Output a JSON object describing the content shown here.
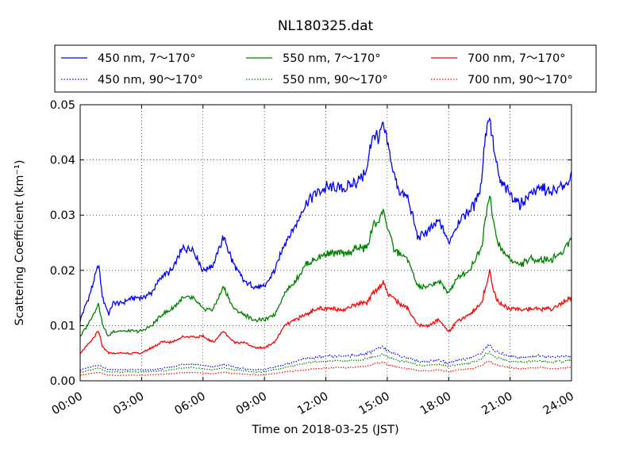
{
  "chart_data": {
    "type": "line",
    "title": "NL180325.dat",
    "xlabel": "Time on 2018-03-25 (JST)",
    "ylabel": "Scattering Coefficient (km⁻¹)",
    "xlim": [
      0,
      24
    ],
    "ylim": [
      0,
      0.05
    ],
    "grid": true,
    "legend_position": "top, above plot",
    "x_ticks": [
      "00:00",
      "03:00",
      "06:00",
      "09:00",
      "12:00",
      "15:00",
      "18:00",
      "21:00",
      "24:00"
    ],
    "y_ticks": [
      "0.00",
      "0.01",
      "0.02",
      "0.03",
      "0.04",
      "0.05"
    ],
    "x": [
      0,
      0.5,
      0.9,
      1.1,
      1.4,
      1.6,
      2,
      2.5,
      3,
      3.5,
      4,
      4.5,
      5,
      5.5,
      6,
      6.5,
      7,
      7.5,
      8,
      8.5,
      9,
      9.5,
      10,
      10.5,
      11,
      11.5,
      12,
      12.5,
      13,
      13.5,
      14,
      14.3,
      14.6,
      14.8,
      15,
      15.3,
      15.6,
      16,
      16.5,
      17,
      17.5,
      18,
      18.5,
      19,
      19.3,
      19.6,
      19.8,
      20,
      20.2,
      20.5,
      21,
      21.5,
      22,
      22.5,
      23,
      23.5,
      24
    ],
    "series": [
      {
        "name": "450 nm, 7～170°",
        "color": "#0000ff",
        "style": "solid",
        "values": [
          0.011,
          0.016,
          0.021,
          0.015,
          0.012,
          0.014,
          0.014,
          0.015,
          0.015,
          0.016,
          0.019,
          0.02,
          0.024,
          0.024,
          0.02,
          0.021,
          0.026,
          0.021,
          0.018,
          0.017,
          0.017,
          0.02,
          0.025,
          0.028,
          0.032,
          0.034,
          0.035,
          0.035,
          0.035,
          0.036,
          0.038,
          0.045,
          0.044,
          0.046,
          0.043,
          0.038,
          0.034,
          0.033,
          0.026,
          0.027,
          0.029,
          0.025,
          0.029,
          0.031,
          0.032,
          0.036,
          0.045,
          0.048,
          0.042,
          0.036,
          0.034,
          0.032,
          0.034,
          0.035,
          0.034,
          0.035,
          0.037
        ]
      },
      {
        "name": "450 nm, 90～170°",
        "color": "#0000ff",
        "style": "dotted",
        "values": [
          0.002,
          0.0025,
          0.0028,
          0.0025,
          0.002,
          0.002,
          0.002,
          0.002,
          0.002,
          0.002,
          0.0022,
          0.0025,
          0.003,
          0.003,
          0.0028,
          0.0025,
          0.003,
          0.0025,
          0.0022,
          0.002,
          0.002,
          0.0025,
          0.003,
          0.0035,
          0.004,
          0.0042,
          0.0044,
          0.0045,
          0.0045,
          0.0046,
          0.005,
          0.0055,
          0.0058,
          0.006,
          0.0055,
          0.005,
          0.0045,
          0.0042,
          0.0035,
          0.0035,
          0.0038,
          0.0032,
          0.0038,
          0.004,
          0.0045,
          0.005,
          0.006,
          0.0065,
          0.0055,
          0.005,
          0.0045,
          0.0042,
          0.0044,
          0.0045,
          0.0043,
          0.0044,
          0.0045
        ]
      },
      {
        "name": "550 nm, 7～170°",
        "color": "#008000",
        "style": "solid",
        "values": [
          0.008,
          0.011,
          0.014,
          0.01,
          0.008,
          0.009,
          0.009,
          0.009,
          0.009,
          0.01,
          0.012,
          0.013,
          0.015,
          0.015,
          0.013,
          0.013,
          0.017,
          0.013,
          0.012,
          0.011,
          0.011,
          0.012,
          0.016,
          0.018,
          0.021,
          0.022,
          0.023,
          0.023,
          0.023,
          0.024,
          0.024,
          0.028,
          0.029,
          0.031,
          0.028,
          0.024,
          0.023,
          0.022,
          0.017,
          0.017,
          0.018,
          0.016,
          0.019,
          0.02,
          0.022,
          0.024,
          0.03,
          0.034,
          0.028,
          0.024,
          0.022,
          0.021,
          0.022,
          0.022,
          0.022,
          0.023,
          0.026
        ]
      },
      {
        "name": "550 nm, 90～170°",
        "color": "#008000",
        "style": "dotted",
        "values": [
          0.0015,
          0.002,
          0.0023,
          0.002,
          0.0016,
          0.0016,
          0.0016,
          0.0016,
          0.0016,
          0.0017,
          0.0018,
          0.002,
          0.0024,
          0.0024,
          0.0022,
          0.002,
          0.0024,
          0.002,
          0.0018,
          0.0016,
          0.0016,
          0.002,
          0.0024,
          0.0028,
          0.0032,
          0.0034,
          0.0035,
          0.0036,
          0.0036,
          0.0037,
          0.004,
          0.0044,
          0.0046,
          0.0048,
          0.0044,
          0.004,
          0.0036,
          0.0034,
          0.0028,
          0.0028,
          0.003,
          0.0026,
          0.003,
          0.0032,
          0.0036,
          0.004,
          0.0048,
          0.0052,
          0.0044,
          0.004,
          0.0036,
          0.0034,
          0.0035,
          0.0036,
          0.0034,
          0.0035,
          0.0036
        ]
      },
      {
        "name": "700 nm, 7～170°",
        "color": "#ff0000",
        "style": "solid",
        "values": [
          0.005,
          0.007,
          0.009,
          0.006,
          0.005,
          0.005,
          0.005,
          0.005,
          0.005,
          0.006,
          0.007,
          0.007,
          0.008,
          0.008,
          0.008,
          0.007,
          0.009,
          0.007,
          0.007,
          0.006,
          0.006,
          0.007,
          0.01,
          0.011,
          0.012,
          0.013,
          0.013,
          0.013,
          0.013,
          0.014,
          0.014,
          0.016,
          0.017,
          0.018,
          0.016,
          0.015,
          0.014,
          0.013,
          0.01,
          0.01,
          0.011,
          0.009,
          0.011,
          0.012,
          0.013,
          0.014,
          0.017,
          0.02,
          0.016,
          0.014,
          0.013,
          0.013,
          0.013,
          0.013,
          0.013,
          0.014,
          0.015
        ]
      },
      {
        "name": "700 nm, 90～170°",
        "color": "#ff0000",
        "style": "dotted",
        "values": [
          0.001,
          0.0013,
          0.0015,
          0.0013,
          0.001,
          0.001,
          0.001,
          0.001,
          0.001,
          0.0011,
          0.0012,
          0.0013,
          0.0015,
          0.0015,
          0.0014,
          0.0013,
          0.0015,
          0.0013,
          0.0012,
          0.0011,
          0.0011,
          0.0013,
          0.0016,
          0.0018,
          0.002,
          0.0022,
          0.0023,
          0.0024,
          0.0024,
          0.0025,
          0.0027,
          0.003,
          0.0032,
          0.0034,
          0.003,
          0.0027,
          0.0024,
          0.0022,
          0.0018,
          0.0018,
          0.002,
          0.0016,
          0.002,
          0.0021,
          0.0024,
          0.0027,
          0.0033,
          0.0036,
          0.003,
          0.0027,
          0.0024,
          0.0022,
          0.0023,
          0.0024,
          0.0022,
          0.0023,
          0.0024
        ]
      }
    ]
  }
}
